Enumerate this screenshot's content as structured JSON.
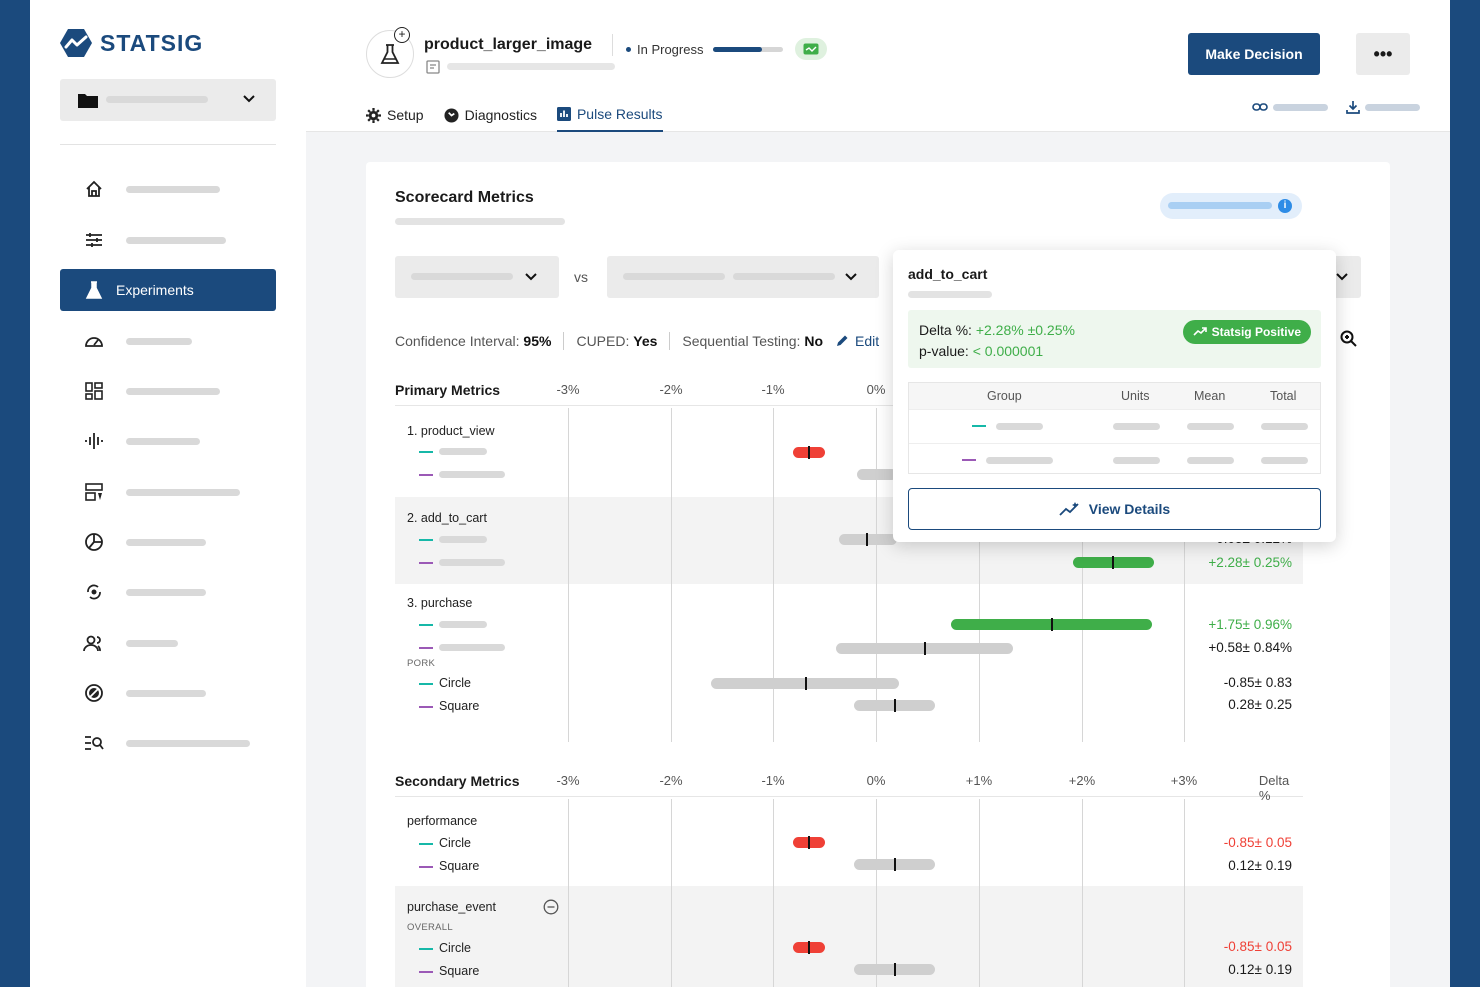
{
  "brand": {
    "name": "STATSIG"
  },
  "sidebar": {
    "nav": [
      {
        "icon": "home-icon",
        "label": ""
      },
      {
        "icon": "sliders-icon",
        "label": ""
      },
      {
        "icon": "flask-icon",
        "label": "Experiments",
        "active": true
      },
      {
        "icon": "gauge-icon",
        "label": ""
      },
      {
        "icon": "dashboard-icon",
        "label": ""
      },
      {
        "icon": "waveform-icon",
        "label": ""
      },
      {
        "icon": "layers-icon",
        "label": ""
      },
      {
        "icon": "pie-icon",
        "label": ""
      },
      {
        "icon": "refresh-icon",
        "label": ""
      },
      {
        "icon": "users-icon",
        "label": ""
      },
      {
        "icon": "no-entry-icon",
        "label": ""
      },
      {
        "icon": "list-search-icon",
        "label": ""
      }
    ]
  },
  "header": {
    "experiment_name": "product_larger_image",
    "status": "In Progress",
    "progress": 0.7,
    "make_decision": "Make Decision",
    "more": "•••",
    "tabs": [
      {
        "label": "Setup",
        "icon": "gear-icon"
      },
      {
        "label": "Diagnostics",
        "icon": "diagnostics-icon"
      },
      {
        "label": "Pulse Results",
        "icon": "chart-icon",
        "active": true
      }
    ]
  },
  "card": {
    "title": "Scorecard Metrics",
    "vs": "vs",
    "confidence": {
      "label": "Confidence Interval:",
      "value": "95%"
    },
    "cuped": {
      "label": "CUPED:",
      "value": "Yes"
    },
    "sequential": {
      "label": "Sequential Testing:",
      "value": "No"
    },
    "edit": "Edit"
  },
  "primary": {
    "title": "Primary Metrics",
    "axis": [
      "-3%",
      "-2%",
      "-1%",
      "0%"
    ],
    "metrics": [
      {
        "name": "1. product_view"
      },
      {
        "name": "2. add_to_cart",
        "values": [
          "-0.05± 0.12%",
          "+2.28± 0.25%"
        ]
      },
      {
        "name": "3. purchase",
        "values": [
          "+1.75± 0.96%",
          "+0.58± 0.84%"
        ],
        "section": "PORK",
        "sub": [
          {
            "name": "Circle",
            "value": "-0.85± 0.83"
          },
          {
            "name": "Square",
            "value": "0.28± 0.25"
          }
        ]
      }
    ]
  },
  "secondary": {
    "title": "Secondary Metrics",
    "axis": [
      "-3%",
      "-2%",
      "-1%",
      "0%",
      "+1%",
      "+2%",
      "+3%"
    ],
    "delta_header": "Delta %",
    "metrics": [
      {
        "name": "performance",
        "sub": [
          {
            "name": "Circle",
            "value": "-0.85± 0.05"
          },
          {
            "name": "Square",
            "value": "0.12± 0.19"
          }
        ]
      },
      {
        "name": "purchase_event",
        "section": "OVERALL",
        "sub": [
          {
            "name": "Circle",
            "value": "-0.85± 0.05"
          },
          {
            "name": "Square",
            "value": "0.12± 0.19"
          }
        ]
      }
    ]
  },
  "popup": {
    "metric": "add_to_cart",
    "delta_label": "Delta %:",
    "delta_value": "+2.28% ±0.25%",
    "pvalue_label": "p-value:",
    "pvalue_value": "< 0.000001",
    "badge": "Statsig Positive",
    "columns": [
      "Group",
      "Units",
      "Mean",
      "Total"
    ],
    "view_details": "View Details"
  },
  "colors": {
    "brand": "#1b4a7d",
    "positive": "#3fae49",
    "negative": "#ef4036",
    "neutral": "#cfcfcf",
    "teal": "#16b8a8",
    "purple": "#9b59b6"
  }
}
